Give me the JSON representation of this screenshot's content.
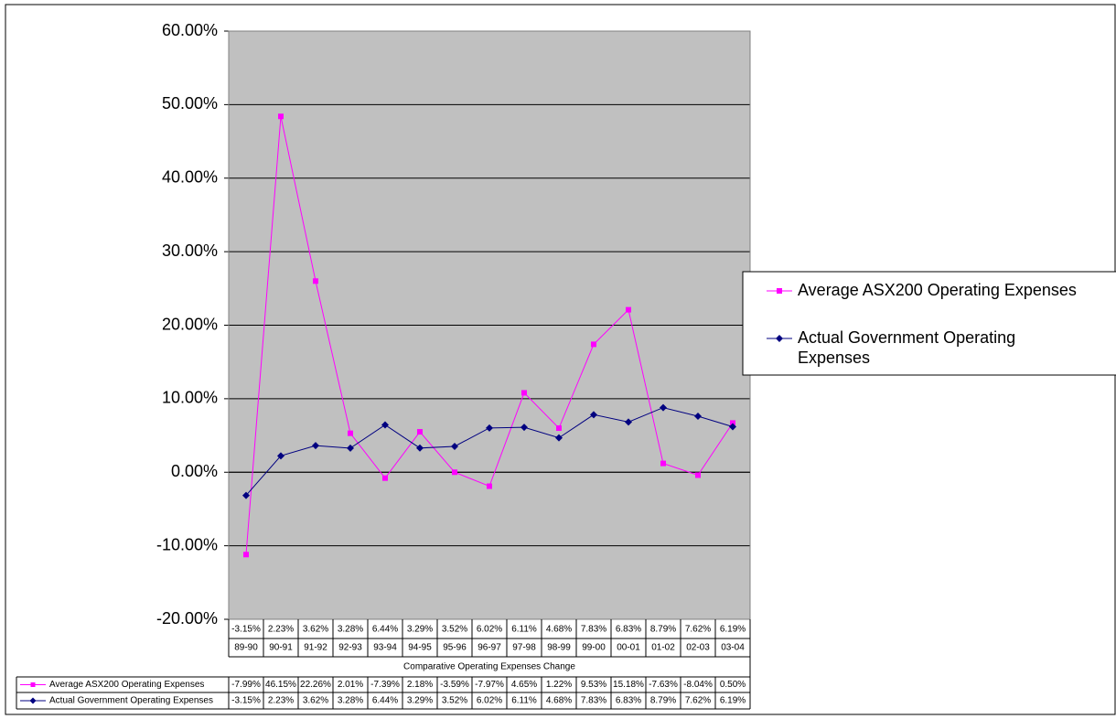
{
  "chart_data": {
    "type": "line",
    "categories": [
      "89-90",
      "90-91",
      "91-92",
      "92-93",
      "93-94",
      "94-95",
      "95-96",
      "96-97",
      "97-98",
      "98-99",
      "99-00",
      "00-01",
      "01-02",
      "02-03",
      "03-04"
    ],
    "x_label": "Comparative Operating Expenses Change",
    "series": [
      {
        "name": "Average ASX200 Operating Expenses",
        "color": "#ff00ff",
        "marker": "square",
        "values": [
          -11.2,
          48.4,
          26.0,
          5.3,
          -0.8,
          5.5,
          0.0,
          -1.9,
          10.8,
          6.0,
          17.4,
          22.1,
          1.2,
          -0.4,
          6.7
        ],
        "table_labels": [
          "-7.99%",
          "46.15%",
          "22.26%",
          "2.01%",
          "-7.39%",
          "2.18%",
          "-3.59%",
          "-7.97%",
          "4.65%",
          "1.22%",
          "9.53%",
          "15.18%",
          "-7.63%",
          "-8.04%",
          "0.50%"
        ]
      },
      {
        "name": "Actual Government Operating Expenses",
        "color": "#000080",
        "marker": "diamond",
        "values": [
          -3.15,
          2.23,
          3.62,
          3.28,
          6.44,
          3.29,
          3.52,
          6.02,
          6.11,
          4.68,
          7.83,
          6.83,
          8.79,
          7.62,
          6.19
        ],
        "value_labels": [
          "-3.15%",
          "2.23%",
          "3.62%",
          "3.28%",
          "6.44%",
          "3.29%",
          "3.52%",
          "6.02%",
          "6.11%",
          "4.68%",
          "7.83%",
          "6.83%",
          "8.79%",
          "7.62%",
          "6.19%"
        ]
      }
    ],
    "ylim": [
      -20,
      60
    ],
    "yticks": [
      {
        "value": -20,
        "label": "-20.00%"
      },
      {
        "value": -10,
        "label": "-10.00%"
      },
      {
        "value": 0,
        "label": "0.00%"
      },
      {
        "value": 10,
        "label": "10.00%"
      },
      {
        "value": 20,
        "label": "20.00%"
      },
      {
        "value": 30,
        "label": "30.00%"
      },
      {
        "value": 40,
        "label": "40.00%"
      },
      {
        "value": 50,
        "label": "50.00%"
      },
      {
        "value": 60,
        "label": "60.00%"
      }
    ],
    "grid": true,
    "plot_background": "#c0c0c0",
    "legend": "right"
  }
}
